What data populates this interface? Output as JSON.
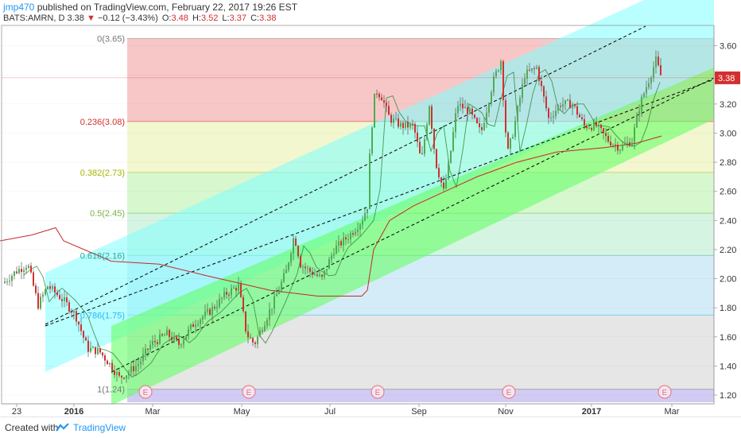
{
  "header": {
    "user": "jmp470",
    "published": "published on TradingView.com, February 22, 2017 19:26 EST"
  },
  "symbol_line": {
    "symbol": "BATS:AMRN, D",
    "last": "3.38",
    "change": "−0.12 (−3.43%)",
    "o_label": "O:",
    "o_val": "3.48",
    "h_label": "H:",
    "h_val": "3.52",
    "l_label": "L:",
    "l_val": "3.37",
    "c_label": "C:",
    "c_val": "3.38"
  },
  "footer": {
    "created": "Created with",
    "brand": "TradingView"
  },
  "colors": {
    "up": "#4caf50",
    "down": "#d32f2f",
    "sma_long": "#c62828",
    "sma_short": "#2e7d32",
    "channel_upper": "#7fffff",
    "channel_lower": "#66ff66"
  },
  "chart_data": {
    "type": "candlestick",
    "ylim": [
      1.14,
      3.74
    ],
    "y_ticks": [
      "3.60",
      "3.40",
      "3.20",
      "3.00",
      "2.80",
      "2.60",
      "2.40",
      "2.20",
      "2.00",
      "1.80",
      "1.60",
      "1.40",
      "1.20"
    ],
    "last_price_label": "3.38",
    "x_labels": [
      "23",
      "2016",
      "Mar",
      "May",
      "Jul",
      "Sep",
      "Nov",
      "2017",
      "Mar"
    ],
    "fib_levels": [
      {
        "label": "0(3.65)",
        "value": 3.65,
        "fill": "#f7c7c7"
      },
      {
        "label": "0.236(3.08)",
        "value": 3.08,
        "fill": "#f2f7cf"
      },
      {
        "label": "0.382(2.73)",
        "value": 2.73,
        "fill": "#d7f7cf"
      },
      {
        "label": "0.5(2.45)",
        "value": 2.45,
        "fill": "#d5f4e2"
      },
      {
        "label": "0.618(2.16)",
        "value": 2.16,
        "fill": "#d4ecf7"
      },
      {
        "label": "0.786(1.75)",
        "value": 1.75,
        "fill": "#e6e6e6"
      },
      {
        "label": "1(1.24)",
        "value": 1.24,
        "fill": "#d2ccf5"
      }
    ],
    "fib_label_colors": [
      "#777777",
      "#d32f2f",
      "#a5b400",
      "#7cb342",
      "#26a69a",
      "#29b6f6",
      "#777777"
    ],
    "events": [
      "E",
      "E",
      "E",
      "E",
      "E"
    ]
  }
}
